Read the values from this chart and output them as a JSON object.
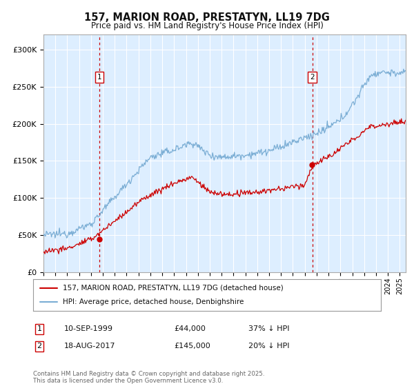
{
  "title_line1": "157, MARION ROAD, PRESTATYN, LL19 7DG",
  "title_line2": "Price paid vs. HM Land Registry's House Price Index (HPI)",
  "background_color": "#ffffff",
  "plot_bg_color": "#ddeeff",
  "grid_color": "#ffffff",
  "hpi_color": "#7aadd4",
  "price_color": "#cc0000",
  "vline_color": "#cc0000",
  "ylim": [
    0,
    320000
  ],
  "yticks": [
    0,
    50000,
    100000,
    150000,
    200000,
    250000,
    300000
  ],
  "ytick_labels": [
    "£0",
    "£50K",
    "£100K",
    "£150K",
    "£200K",
    "£250K",
    "£300K"
  ],
  "purchase1_date_label": "10-SEP-1999",
  "purchase1_price": 44000,
  "purchase1_pct": "37% ↓ HPI",
  "purchase2_date_label": "18-AUG-2017",
  "purchase2_price": 145000,
  "purchase2_pct": "20% ↓ HPI",
  "legend_label1": "157, MARION ROAD, PRESTATYN, LL19 7DG (detached house)",
  "legend_label2": "HPI: Average price, detached house, Denbighshire",
  "footer": "Contains HM Land Registry data © Crown copyright and database right 2025.\nThis data is licensed under the Open Government Licence v3.0.",
  "x_start_year": 1995,
  "x_end_year": 2025
}
